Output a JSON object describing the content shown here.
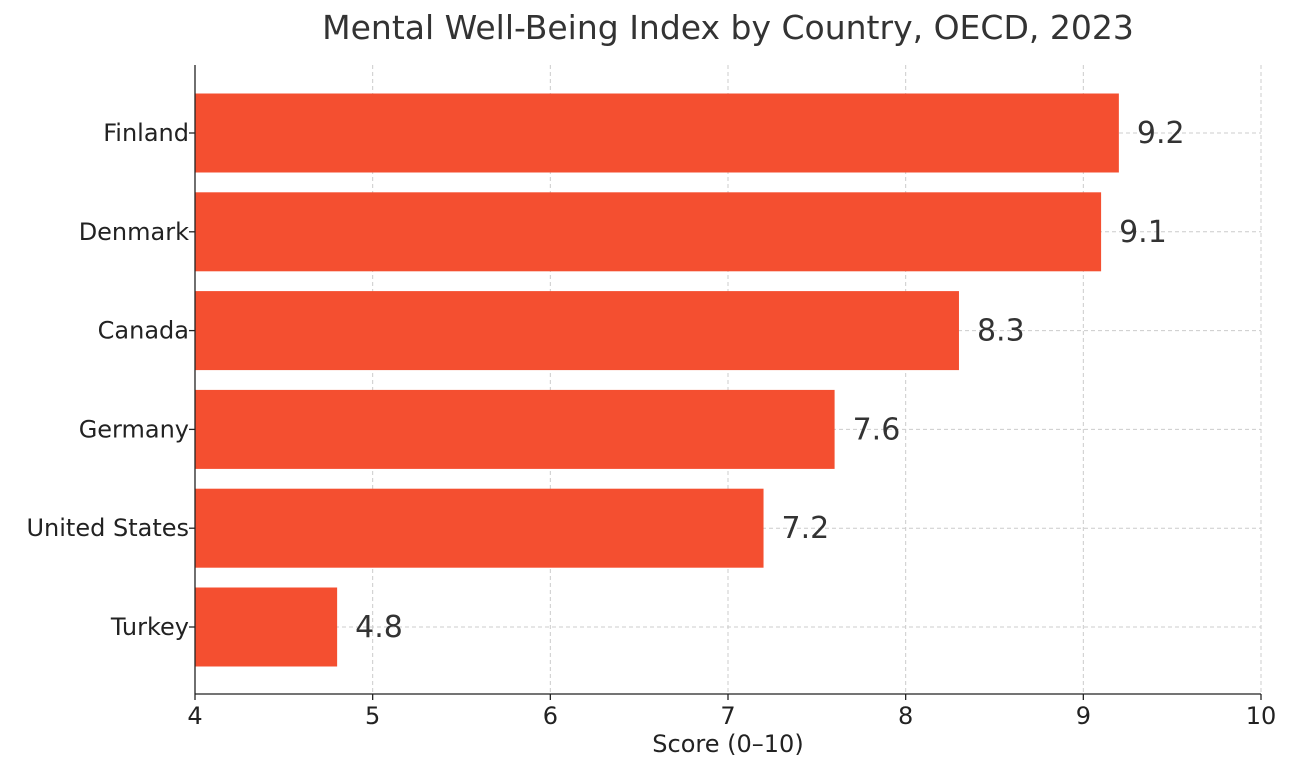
{
  "chart_data": {
    "type": "bar",
    "orientation": "horizontal",
    "title": "Mental Well-Being Index by Country, OECD, 2023",
    "xlabel": "Score (0–10)",
    "ylabel": "",
    "categories": [
      "Finland",
      "Denmark",
      "Canada",
      "Germany",
      "United States",
      "Turkey"
    ],
    "values": [
      9.2,
      9.1,
      8.3,
      7.6,
      7.2,
      4.8
    ],
    "value_labels": [
      "9.2",
      "9.1",
      "8.3",
      "7.6",
      "7.2",
      "4.8"
    ],
    "xlim": [
      4,
      10
    ],
    "xticks": [
      "4",
      "5",
      "6",
      "7",
      "8",
      "9",
      "10"
    ],
    "grid": true,
    "bar_color": "#f44f30"
  }
}
